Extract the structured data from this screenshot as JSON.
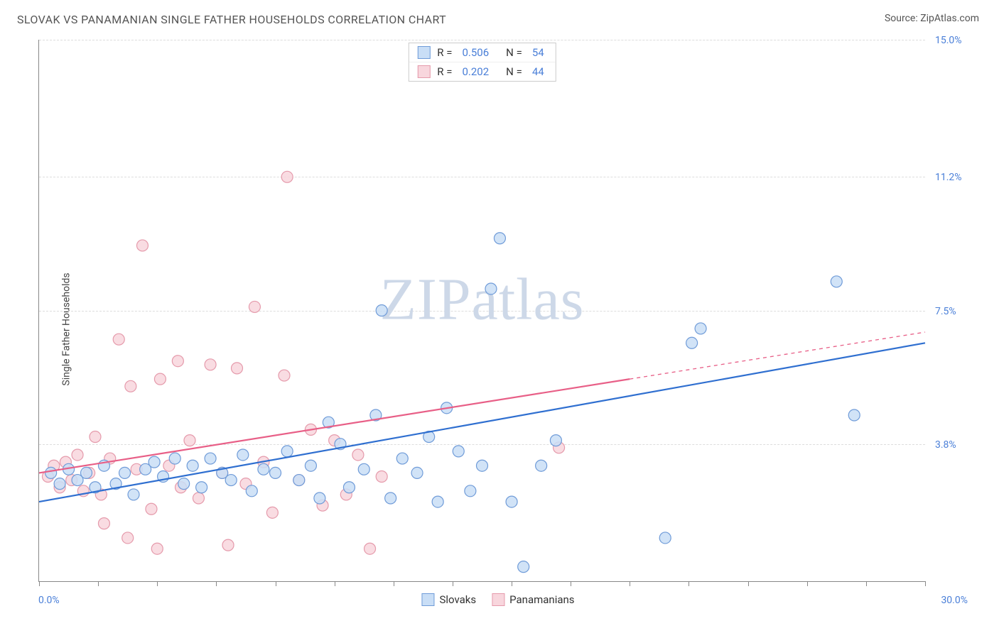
{
  "title": "SLOVAK VS PANAMANIAN SINGLE FATHER HOUSEHOLDS CORRELATION CHART",
  "source_label": "Source: ZipAtlas.com",
  "ylabel": "Single Father Households",
  "watermark": "ZIPatlas",
  "chart": {
    "type": "scatter",
    "xlim": [
      0,
      30
    ],
    "ylim": [
      0,
      15
    ],
    "x_min_label": "0.0%",
    "x_max_label": "30.0%",
    "yticks": [
      {
        "v": 3.8,
        "label": "3.8%"
      },
      {
        "v": 7.5,
        "label": "7.5%"
      },
      {
        "v": 11.2,
        "label": "11.2%"
      },
      {
        "v": 15.0,
        "label": "15.0%"
      }
    ],
    "xtick_positions": [
      0,
      2,
      4,
      6,
      8,
      10,
      12,
      14,
      16,
      18,
      20,
      22,
      24,
      26,
      28,
      30
    ],
    "grid_color": "#dddddd",
    "background": "#ffffff",
    "marker_radius": 8,
    "marker_stroke_width": 1.2,
    "line_width": 2.2,
    "series": [
      {
        "name": "Slovaks",
        "fill": "#c9def6",
        "stroke": "#6f9bd8",
        "line_color": "#2f6fd0",
        "r_value": "0.506",
        "n_value": "54",
        "regression": {
          "x1": 0,
          "y1": 2.2,
          "x2": 30,
          "y2": 6.6,
          "dash_from_x": null
        },
        "points": [
          [
            0.4,
            3.0
          ],
          [
            0.7,
            2.7
          ],
          [
            1.0,
            3.1
          ],
          [
            1.3,
            2.8
          ],
          [
            1.6,
            3.0
          ],
          [
            1.9,
            2.6
          ],
          [
            2.2,
            3.2
          ],
          [
            2.6,
            2.7
          ],
          [
            2.9,
            3.0
          ],
          [
            3.2,
            2.4
          ],
          [
            3.6,
            3.1
          ],
          [
            3.9,
            3.3
          ],
          [
            4.2,
            2.9
          ],
          [
            4.6,
            3.4
          ],
          [
            4.9,
            2.7
          ],
          [
            5.2,
            3.2
          ],
          [
            5.5,
            2.6
          ],
          [
            5.8,
            3.4
          ],
          [
            6.2,
            3.0
          ],
          [
            6.5,
            2.8
          ],
          [
            6.9,
            3.5
          ],
          [
            7.2,
            2.5
          ],
          [
            7.6,
            3.1
          ],
          [
            8.0,
            3.0
          ],
          [
            8.4,
            3.6
          ],
          [
            8.8,
            2.8
          ],
          [
            9.2,
            3.2
          ],
          [
            9.5,
            2.3
          ],
          [
            9.8,
            4.4
          ],
          [
            10.2,
            3.8
          ],
          [
            10.5,
            2.6
          ],
          [
            11.0,
            3.1
          ],
          [
            11.4,
            4.6
          ],
          [
            11.6,
            7.5
          ],
          [
            11.9,
            2.3
          ],
          [
            12.3,
            3.4
          ],
          [
            12.8,
            3.0
          ],
          [
            13.2,
            4.0
          ],
          [
            13.5,
            2.2
          ],
          [
            13.8,
            4.8
          ],
          [
            14.2,
            3.6
          ],
          [
            14.6,
            2.5
          ],
          [
            15.0,
            3.2
          ],
          [
            15.3,
            8.1
          ],
          [
            15.6,
            9.5
          ],
          [
            16.4,
            0.4
          ],
          [
            17.0,
            3.2
          ],
          [
            17.5,
            3.9
          ],
          [
            21.2,
            1.2
          ],
          [
            22.4,
            7.0
          ],
          [
            22.1,
            6.6
          ],
          [
            27.0,
            8.3
          ],
          [
            27.6,
            4.6
          ],
          [
            16.0,
            2.2
          ]
        ]
      },
      {
        "name": "Panamanians",
        "fill": "#f8d6dd",
        "stroke": "#e59aab",
        "line_color": "#e85f87",
        "r_value": "0.202",
        "n_value": "44",
        "regression": {
          "x1": 0,
          "y1": 3.0,
          "x2": 30,
          "y2": 6.9,
          "dash_from_x": 20
        },
        "points": [
          [
            0.3,
            2.9
          ],
          [
            0.5,
            3.2
          ],
          [
            0.7,
            2.6
          ],
          [
            0.9,
            3.3
          ],
          [
            1.1,
            2.8
          ],
          [
            1.3,
            3.5
          ],
          [
            1.5,
            2.5
          ],
          [
            1.7,
            3.0
          ],
          [
            1.9,
            4.0
          ],
          [
            2.1,
            2.4
          ],
          [
            2.2,
            1.6
          ],
          [
            2.4,
            3.4
          ],
          [
            2.7,
            6.7
          ],
          [
            3.0,
            1.2
          ],
          [
            3.1,
            5.4
          ],
          [
            3.3,
            3.1
          ],
          [
            3.5,
            9.3
          ],
          [
            3.8,
            2.0
          ],
          [
            4.0,
            0.9
          ],
          [
            4.1,
            5.6
          ],
          [
            4.4,
            3.2
          ],
          [
            4.7,
            6.1
          ],
          [
            4.8,
            2.6
          ],
          [
            5.1,
            3.9
          ],
          [
            5.4,
            2.3
          ],
          [
            5.8,
            6.0
          ],
          [
            6.2,
            3.0
          ],
          [
            6.4,
            1.0
          ],
          [
            6.7,
            5.9
          ],
          [
            7.0,
            2.7
          ],
          [
            7.3,
            7.6
          ],
          [
            7.6,
            3.3
          ],
          [
            7.9,
            1.9
          ],
          [
            8.3,
            5.7
          ],
          [
            8.4,
            11.2
          ],
          [
            8.8,
            2.8
          ],
          [
            9.2,
            4.2
          ],
          [
            9.6,
            2.1
          ],
          [
            10.0,
            3.9
          ],
          [
            10.4,
            2.4
          ],
          [
            10.8,
            3.5
          ],
          [
            11.2,
            0.9
          ],
          [
            11.6,
            2.9
          ],
          [
            17.6,
            3.7
          ]
        ]
      }
    ]
  },
  "legend_bottom": "Slovaks / Panamanians"
}
